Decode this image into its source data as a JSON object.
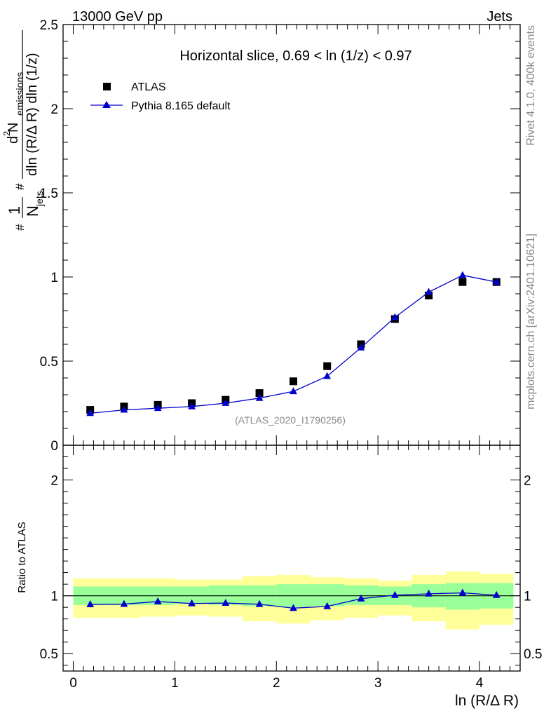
{
  "header": {
    "left": "13000 GeV pp",
    "right": "Jets"
  },
  "side": {
    "rivet": "Rivet 4.1.0,  400k events",
    "mcplots": "mcplots.cern.ch [arXiv:2401.10621]"
  },
  "chart_data": [
    {
      "type": "scatter",
      "title": "Horizontal slice, 0.69 < ln (1/z) < 0.97",
      "watermark": "(ATLAS_2020_I1790256)",
      "ylabel": {
        "frac1_num": "1",
        "frac1_den": "N",
        "frac1_den_sub": "jets",
        "frac2_num": "d",
        "frac2_num_sup": "2",
        "frac2_num_main": " N",
        "frac2_num_sub": "emissions",
        "frac2_den": "dln (R/Δ R) dln (1/z)",
        "hash1": "#",
        "hash2": "#"
      },
      "xlim": [
        -0.1,
        4.4
      ],
      "ylim": [
        0,
        2.5
      ],
      "y_ticks": [
        {
          "value": 0,
          "label": "0"
        },
        {
          "value": 0.5,
          "label": "0.5"
        },
        {
          "value": 1,
          "label": "1"
        },
        {
          "value": 1.5,
          "label": "1.5"
        },
        {
          "value": 2,
          "label": "2"
        },
        {
          "value": 2.5,
          "label": "2.5"
        }
      ],
      "legend": [
        {
          "name": "ATLAS",
          "marker": "square",
          "color": "#000000"
        },
        {
          "name": "Pythia 8.165 default",
          "marker": "triangle",
          "color": "#0000cc"
        }
      ],
      "series": [
        {
          "name": "ATLAS",
          "x": [
            0.167,
            0.5,
            0.833,
            1.167,
            1.5,
            1.833,
            2.167,
            2.5,
            2.833,
            3.167,
            3.5,
            3.833,
            4.167
          ],
          "values": [
            0.21,
            0.23,
            0.24,
            0.25,
            0.27,
            0.31,
            0.38,
            0.47,
            0.6,
            0.75,
            0.89,
            0.97,
            0.97
          ]
        },
        {
          "name": "Pythia 8.165 default",
          "x": [
            0.167,
            0.5,
            0.833,
            1.167,
            1.5,
            1.833,
            2.167,
            2.5,
            2.833,
            3.167,
            3.5,
            3.833,
            4.167
          ],
          "values": [
            0.19,
            0.21,
            0.22,
            0.23,
            0.25,
            0.28,
            0.32,
            0.41,
            0.58,
            0.76,
            0.91,
            1.01,
            0.97
          ]
        }
      ]
    },
    {
      "type": "line",
      "ylabel": "Ratio to ATLAS",
      "xlabel": "ln (R/Δ R)",
      "xlim": [
        -0.1,
        4.4
      ],
      "ylim": [
        0.35,
        2.3
      ],
      "reference_line": 1,
      "y_ticks": [
        {
          "value": 0.5,
          "label": "0.5"
        },
        {
          "value": 1,
          "label": "1"
        },
        {
          "value": 2,
          "label": "2"
        }
      ],
      "x_ticks": [
        {
          "value": 0,
          "label": "0"
        },
        {
          "value": 1,
          "label": "1"
        },
        {
          "value": 2,
          "label": "2"
        },
        {
          "value": 3,
          "label": "3"
        },
        {
          "value": 4,
          "label": "4"
        }
      ],
      "bands": {
        "edges": [
          0,
          0.333,
          0.667,
          1.0,
          1.333,
          1.667,
          2.0,
          2.333,
          2.667,
          3.0,
          3.333,
          3.667,
          4.0,
          4.333
        ],
        "inner_lo": [
          0.92,
          0.92,
          0.92,
          0.93,
          0.92,
          0.91,
          0.9,
          0.91,
          0.92,
          0.92,
          0.9,
          0.88,
          0.89
        ],
        "inner_hi": [
          1.08,
          1.08,
          1.08,
          1.08,
          1.09,
          1.09,
          1.1,
          1.1,
          1.09,
          1.08,
          1.1,
          1.11,
          1.11
        ],
        "outer_lo": [
          0.81,
          0.81,
          0.82,
          0.83,
          0.82,
          0.78,
          0.76,
          0.79,
          0.81,
          0.83,
          0.78,
          0.71,
          0.75
        ],
        "outer_hi": [
          1.15,
          1.15,
          1.15,
          1.14,
          1.14,
          1.17,
          1.18,
          1.16,
          1.15,
          1.13,
          1.18,
          1.21,
          1.19
        ],
        "inner_color": "#99ff99",
        "outer_color": "#ffff99"
      },
      "series": [
        {
          "name": "Pythia 8.165 default / ATLAS",
          "x": [
            0.167,
            0.5,
            0.833,
            1.167,
            1.5,
            1.833,
            2.167,
            2.5,
            2.833,
            3.167,
            3.5,
            3.833,
            4.167
          ],
          "values": [
            0.925,
            0.928,
            0.95,
            0.933,
            0.937,
            0.927,
            0.893,
            0.908,
            0.975,
            1.005,
            1.017,
            1.025,
            1.005
          ],
          "errors": [
            0.025,
            0.02,
            0.02,
            0.02,
            0.02,
            0.015,
            0.012,
            0.01,
            0.01,
            0.01,
            0.01,
            0.01,
            0.01
          ]
        }
      ]
    }
  ]
}
